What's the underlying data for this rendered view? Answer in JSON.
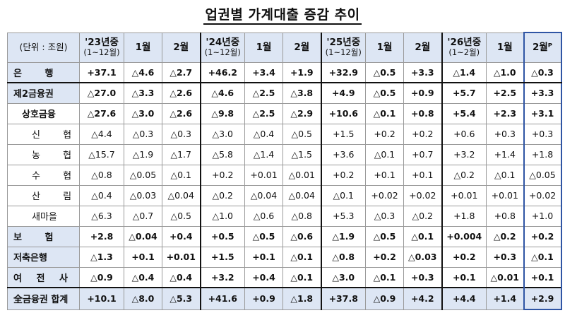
{
  "title": "업권별 가계대출 증감 추이",
  "header": {
    "unit": "(단위 : 조원)",
    "columns": [
      {
        "main": "'23년중",
        "sub": "(1~12월)"
      },
      {
        "main": "1월",
        "sub": ""
      },
      {
        "main": "2월",
        "sub": ""
      },
      {
        "main": "'24년중",
        "sub": "(1~12월)"
      },
      {
        "main": "1월",
        "sub": ""
      },
      {
        "main": "2월",
        "sub": ""
      },
      {
        "main": "'25년중",
        "sub": "(1~12월)"
      },
      {
        "main": "1월",
        "sub": ""
      },
      {
        "main": "2월",
        "sub": ""
      },
      {
        "main": "'26년중",
        "sub": "(1~2월)"
      },
      {
        "main": "1월",
        "sub": ""
      },
      {
        "main": "2월ᴾ",
        "sub": ""
      }
    ]
  },
  "rows": [
    {
      "label": "은 행",
      "values": [
        "+37.1",
        "△4.6",
        "△2.7",
        "+46.2",
        "+3.4",
        "+1.9",
        "+32.9",
        "△0.5",
        "+3.3",
        "△1.4",
        "△1.0",
        "△0.3"
      ]
    },
    {
      "label": "제2금융권",
      "values": [
        "△27.0",
        "△3.3",
        "△2.6",
        "△4.6",
        "△2.5",
        "△3.8",
        "+4.9",
        "△0.5",
        "+0.9",
        "+5.7",
        "+2.5",
        "+3.3"
      ]
    },
    {
      "label": "상호금융",
      "values": [
        "△27.6",
        "△3.0",
        "△2.6",
        "△9.8",
        "△2.5",
        "△2.9",
        "+10.6",
        "△0.1",
        "+0.8",
        "+5.4",
        "+2.3",
        "+3.1"
      ]
    },
    {
      "label": "신 협",
      "values": [
        "△4.4",
        "△0.3",
        "△0.3",
        "△3.0",
        "△0.4",
        "△0.5",
        "+1.5",
        "+0.2",
        "+0.2",
        "+0.6",
        "+0.3",
        "+0.3"
      ]
    },
    {
      "label": "농 협",
      "values": [
        "△15.7",
        "△1.9",
        "△1.7",
        "△5.8",
        "△1.4",
        "△1.5",
        "+3.6",
        "△0.1",
        "+0.7",
        "+3.2",
        "+1.4",
        "+1.8"
      ]
    },
    {
      "label": "수 협",
      "values": [
        "△0.8",
        "△0.05",
        "△0.1",
        "+0.2",
        "+0.01",
        "△0.01",
        "+0.2",
        "+0.1",
        "+0.1",
        "△0.2",
        "△0.1",
        "△0.05"
      ]
    },
    {
      "label": "산 림",
      "values": [
        "△0.4",
        "△0.03",
        "△0.04",
        "△0.2",
        "△0.04",
        "△0.04",
        "△0.1",
        "+0.02",
        "+0.02",
        "+0.01",
        "+0.01",
        "+0.02"
      ]
    },
    {
      "label": "새마을",
      "values": [
        "△6.3",
        "△0.7",
        "△0.5",
        "△1.0",
        "△0.6",
        "△0.8",
        "+5.3",
        "△0.3",
        "△0.2",
        "+1.8",
        "+0.8",
        "+1.0"
      ]
    },
    {
      "label": "보 험",
      "values": [
        "+2.8",
        "△0.04",
        "+0.4",
        "+0.5",
        "△0.5",
        "△0.6",
        "△1.9",
        "△0.5",
        "△0.1",
        "+0.004",
        "△0.2",
        "+0.2"
      ]
    },
    {
      "label": "저축은행",
      "values": [
        "△1.3",
        "+0.1",
        "+0.01",
        "+1.5",
        "+0.1",
        "△0.1",
        "△0.8",
        "+0.2",
        "△0.03",
        "+0.2",
        "+0.3",
        "△0.1"
      ]
    },
    {
      "label": "여 전 사",
      "values": [
        "△0.9",
        "△0.4",
        "△0.4",
        "+3.2",
        "+0.4",
        "△0.1",
        "△3.0",
        "△0.1",
        "+0.3",
        "+0.1",
        "△0.01",
        "+0.1"
      ]
    },
    {
      "label": "全금융권 합계",
      "values": [
        "+10.1",
        "△8.0",
        "△5.3",
        "+41.6",
        "+0.9",
        "△1.8",
        "+37.8",
        "△0.9",
        "+4.2",
        "+4.4",
        "+1.4",
        "+2.9"
      ]
    }
  ]
}
